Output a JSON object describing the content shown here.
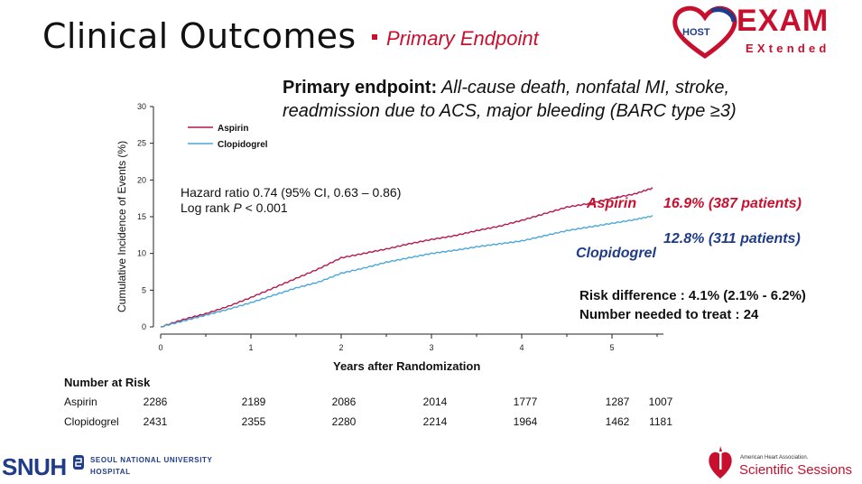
{
  "header": {
    "title": "Clinical Outcomes",
    "subtitle": "Primary Endpoint"
  },
  "logo": {
    "host": "HOST",
    "exam": "EXAM",
    "extended": "EXtended"
  },
  "endpoint": {
    "bold": "Primary endpoint:",
    "line1": "All-cause death, nonfatal MI, stroke,",
    "line2": "readmission due to ACS, major bleeding (BARC type ≥3)"
  },
  "stats": {
    "hr_line": "Hazard ratio 0.74 (95% CI, 0.63 – 0.86)",
    "logrank_prefix": "Log rank ",
    "logrank_p": "P",
    "logrank_suffix": " < 0.001",
    "risk_difference": "Risk difference : 4.1% (2.1% - 6.2%)",
    "nnt": "Number needed to treat : 24"
  },
  "labels": {
    "aspirin_name": "Aspirin",
    "aspirin_pct": "16.9% (387 patients)",
    "clopidogrel_name": "Clopidogrel",
    "clopidogrel_pct": "12.8% (311 patients)"
  },
  "colors": {
    "aspirin": "#b5174b",
    "clopidogrel": "#4aa8d8",
    "aspirin_text": "#c8102e",
    "clopidogrel_text": "#1f3c88"
  },
  "chart_data": {
    "type": "line",
    "xlabel": "Years after Randomization",
    "ylabel": "Cumulative Incidence of Events (%)",
    "xlim": [
      0,
      5.5
    ],
    "ylim": [
      0,
      30
    ],
    "xticks": [
      0,
      1,
      2,
      3,
      4,
      5
    ],
    "yticks": [
      0,
      5,
      10,
      15,
      20,
      25,
      30
    ],
    "legend_position": "top-left",
    "series": [
      {
        "name": "Aspirin",
        "x": [
          0,
          0.25,
          0.5,
          0.75,
          1.0,
          1.25,
          1.5,
          1.75,
          2.0,
          2.25,
          2.5,
          2.75,
          3.0,
          3.25,
          3.5,
          3.75,
          4.0,
          4.25,
          4.5,
          4.75,
          5.0,
          5.25,
          5.45
        ],
        "y": [
          0,
          1.0,
          1.8,
          2.8,
          4.0,
          5.3,
          6.6,
          7.9,
          9.4,
          10.0,
          10.6,
          11.3,
          11.9,
          12.4,
          13.1,
          13.7,
          14.5,
          15.4,
          16.3,
          16.8,
          17.5,
          18.1,
          18.9
        ]
      },
      {
        "name": "Clopidogrel",
        "x": [
          0,
          0.25,
          0.5,
          0.75,
          1.0,
          1.25,
          1.5,
          1.75,
          2.0,
          2.25,
          2.5,
          2.75,
          3.0,
          3.25,
          3.5,
          3.75,
          4.0,
          4.25,
          4.5,
          4.75,
          5.0,
          5.25,
          5.45
        ],
        "y": [
          0,
          0.8,
          1.6,
          2.4,
          3.3,
          4.3,
          5.3,
          6.1,
          7.3,
          8.0,
          8.8,
          9.4,
          10.0,
          10.4,
          10.9,
          11.3,
          11.7,
          12.4,
          13.1,
          13.6,
          14.1,
          14.6,
          15.1
        ]
      }
    ],
    "risk_table": {
      "title": "Number at Risk",
      "rows": [
        {
          "label": "Aspirin",
          "values": [
            "2286",
            "2189",
            "2086",
            "2014",
            "1777",
            "1287",
            "1007"
          ]
        },
        {
          "label": "Clopidogrel",
          "values": [
            "2431",
            "2355",
            "2280",
            "2214",
            "1964",
            "1462",
            "1181"
          ]
        }
      ]
    }
  },
  "footer": {
    "snuh": "SNUH",
    "snuh_line1": "SEOUL NATIONAL UNIVERSITY",
    "snuh_line2": "HOSPITAL",
    "aha_small": "American Heart Association.",
    "aha_big": "Scientific Sessions"
  }
}
